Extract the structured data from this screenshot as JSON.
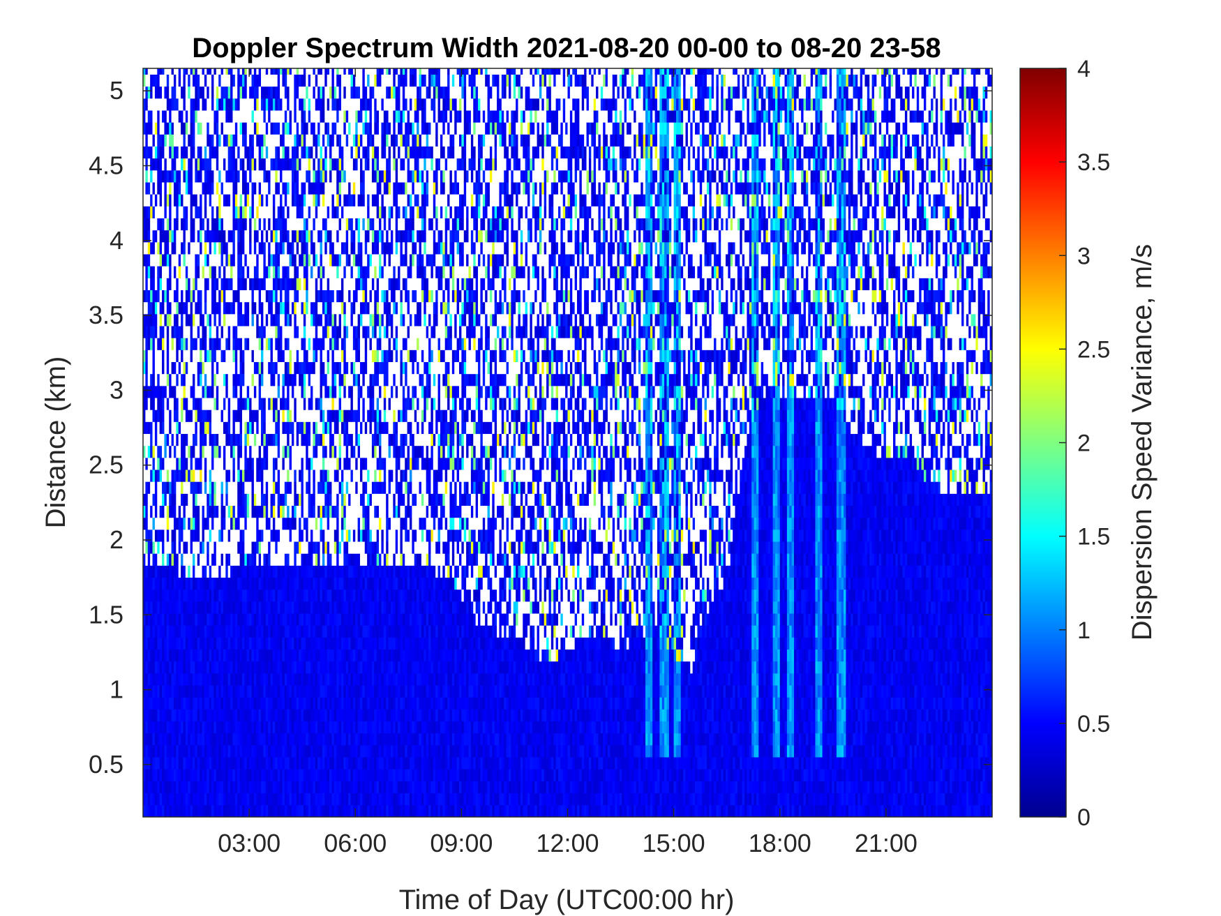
{
  "chart_data": {
    "type": "heatmap",
    "title": "Doppler Spectrum Width 2021-08-20 00-00 to 08-20 23-58",
    "xlabel": "Time of Day (UTC00:00 hr)",
    "ylabel": "Distance (km)",
    "colorbar_label": "Dispersion Speed Variance, m/s",
    "xlim": [
      0,
      24
    ],
    "ylim": [
      0.15,
      5.15
    ],
    "clim": [
      0,
      4
    ],
    "colormap": "jet",
    "x_ticks": [
      3,
      6,
      9,
      12,
      15,
      18,
      21
    ],
    "x_tick_labels": [
      "03:00",
      "06:00",
      "09:00",
      "12:00",
      "15:00",
      "18:00",
      "21:00"
    ],
    "y_ticks": [
      0.5,
      1,
      1.5,
      2,
      2.5,
      3,
      3.5,
      4,
      4.5,
      5
    ],
    "y_tick_labels": [
      "0.5",
      "1",
      "1.5",
      "2",
      "2.5",
      "3",
      "3.5",
      "4",
      "4.5",
      "5"
    ],
    "colorbar_ticks": [
      0,
      0.5,
      1,
      1.5,
      2,
      2.5,
      3,
      3.5,
      4
    ],
    "colorbar_tick_labels": [
      "0",
      "0.5",
      "1",
      "1.5",
      "2",
      "2.5",
      "3",
      "3.5",
      "4"
    ],
    "typical_value_below_boundary": 0.45,
    "typical_value_in_streaks": 1.0,
    "missing_data_color": "#ffffff",
    "series": [
      {
        "x": [
          0,
          1,
          2,
          3,
          4,
          5,
          6,
          7,
          8,
          9,
          9.5,
          10,
          10.5,
          11,
          11.5,
          12,
          12.5,
          13,
          13.5,
          14,
          14.5,
          15,
          15.5,
          16,
          16.5,
          17,
          17.5,
          18,
          18.5,
          19,
          19.5,
          20,
          20.5,
          21,
          21.5,
          22,
          22.5,
          23,
          24
        ],
        "y": [
          1.8,
          1.75,
          1.7,
          1.8,
          1.8,
          1.8,
          1.8,
          1.8,
          1.8,
          1.6,
          1.4,
          1.35,
          1.3,
          1.2,
          1.15,
          1.25,
          1.3,
          1.3,
          1.25,
          1.3,
          1.4,
          1.2,
          1.1,
          1.5,
          1.7,
          2.6,
          2.9,
          2.95,
          2.9,
          2.9,
          2.9,
          2.7,
          2.6,
          2.5,
          2.5,
          2.4,
          2.3,
          2.3,
          2.3
        ]
      }
    ]
  }
}
